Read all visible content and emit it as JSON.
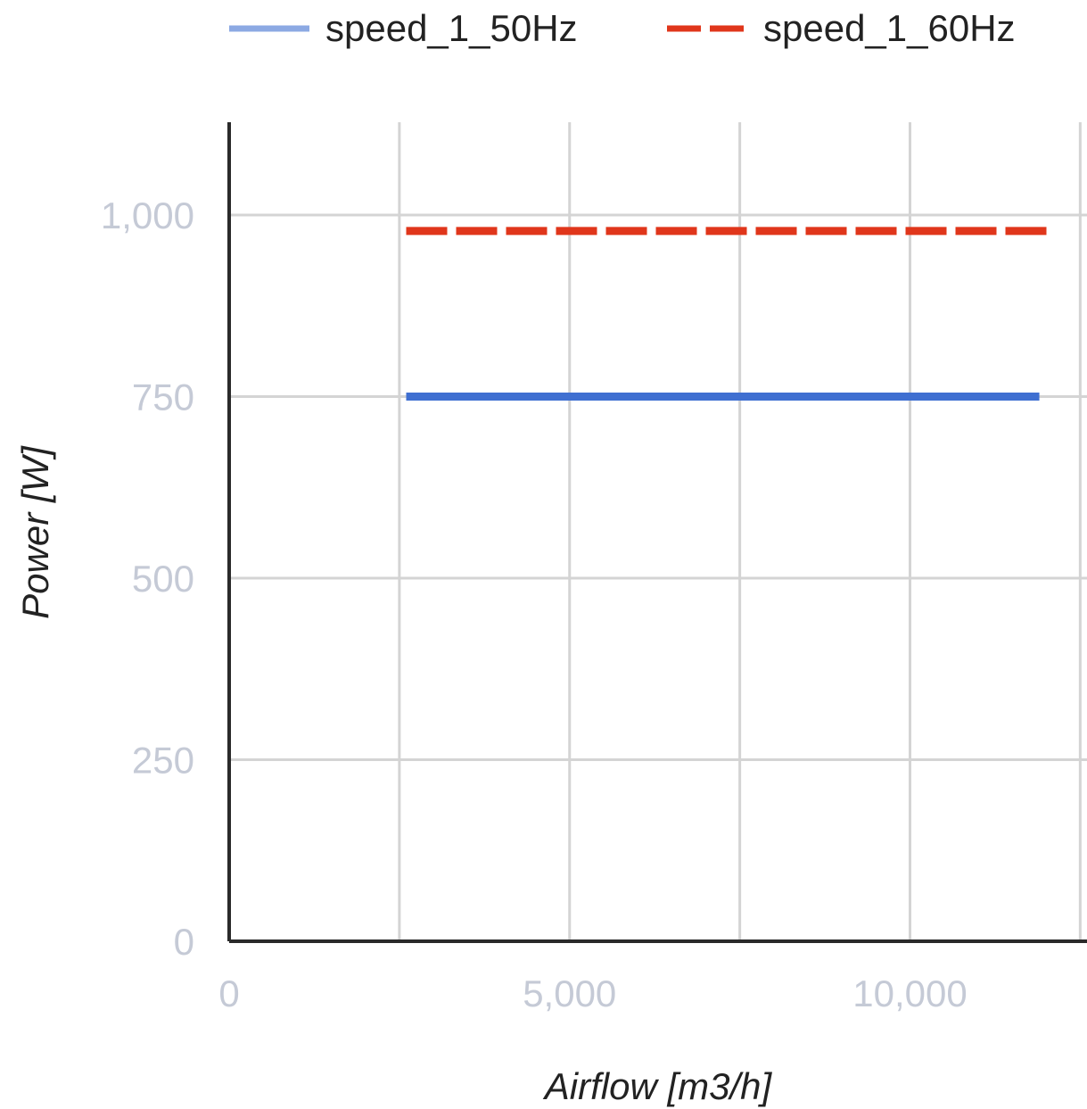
{
  "chart_data": {
    "type": "line",
    "xlabel": "Airflow [m3/h]",
    "ylabel": "Power [W]",
    "xlim": [
      0,
      12600
    ],
    "ylim": [
      0,
      1000
    ],
    "x_ticks": [
      0,
      5000,
      10000
    ],
    "y_ticks": [
      0,
      250,
      500,
      750,
      1000
    ],
    "x_tick_labels": [
      "0",
      "5,000",
      "10,000"
    ],
    "y_tick_labels": [
      "0",
      "250",
      "500",
      "750",
      "1,000"
    ],
    "x_gridlines": [
      2500,
      5000,
      7500,
      10000,
      12500
    ],
    "grid": true,
    "legend_position": "top",
    "series": [
      {
        "name": "speed_1_50Hz",
        "color": "#3f6fd1",
        "style": "solid",
        "x": [
          2600,
          11900
        ],
        "y": [
          750,
          750
        ]
      },
      {
        "name": "speed_1_60Hz",
        "color": "#e0361b",
        "style": "dashed",
        "x": [
          2600,
          12100
        ],
        "y": [
          978,
          978
        ]
      }
    ]
  }
}
